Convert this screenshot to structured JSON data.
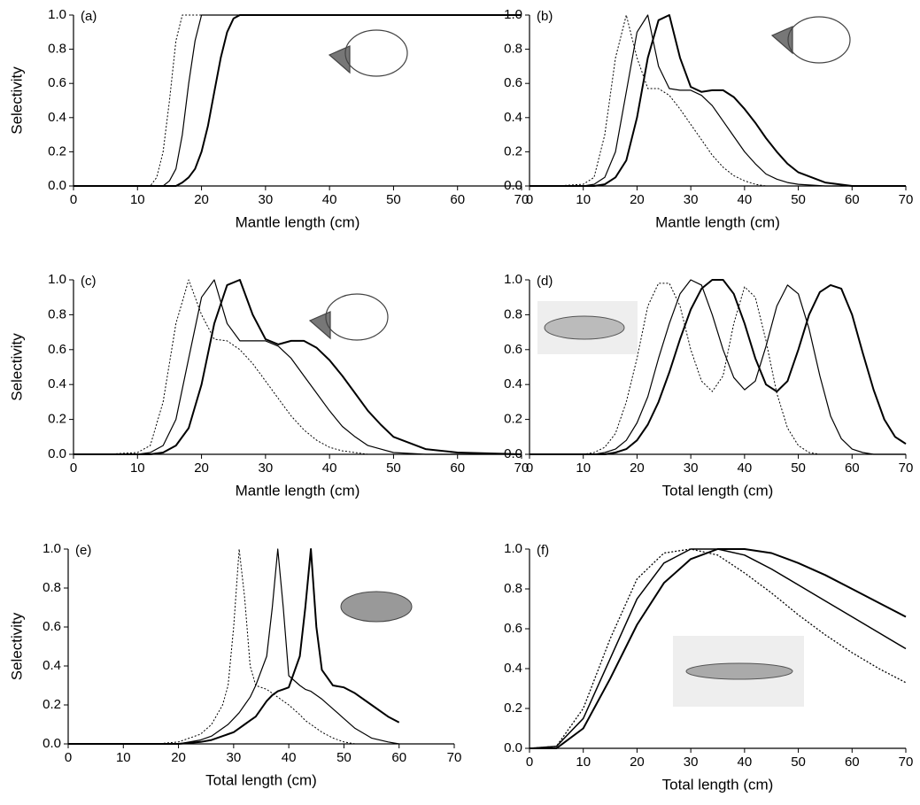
{
  "chart_data": [
    {
      "type": "line",
      "title": "(a)",
      "x_label": "Mantle length (cm)",
      "y_label": "Selectivity",
      "x": [
        0,
        10,
        12,
        13,
        14,
        15,
        16,
        17,
        18,
        19,
        20,
        21,
        22,
        23,
        24,
        25,
        26,
        28,
        30,
        40,
        50,
        60,
        70
      ],
      "series": [
        {
          "style": "dotted",
          "width": 1,
          "color": "#000000",
          "values": [
            0,
            0,
            0,
            0.05,
            0.2,
            0.5,
            0.85,
            1,
            1,
            1,
            1,
            1,
            1,
            1,
            1,
            1,
            1,
            1,
            1,
            1,
            1,
            1,
            1
          ]
        },
        {
          "style": "solid",
          "width": 1.2,
          "color": "#000000",
          "values": [
            0,
            0,
            0,
            0,
            0,
            0.03,
            0.1,
            0.3,
            0.6,
            0.85,
            1,
            1,
            1,
            1,
            1,
            1,
            1,
            1,
            1,
            1,
            1,
            1,
            1
          ]
        },
        {
          "style": "solid",
          "width": 2,
          "color": "#000000",
          "values": [
            0,
            0,
            0,
            0,
            0,
            0,
            0,
            0.02,
            0.05,
            0.1,
            0.2,
            0.35,
            0.55,
            0.75,
            0.9,
            0.98,
            1,
            1,
            1,
            1,
            1,
            1,
            1
          ]
        }
      ],
      "xlim": [
        0,
        70
      ],
      "ylim": [
        0,
        1
      ],
      "xticks": [
        0,
        10,
        20,
        30,
        40,
        50,
        60,
        70
      ],
      "yticks": [
        {
          "value": 0,
          "label": "0.0"
        },
        0.2,
        0.4,
        0.6,
        0.8,
        {
          "value": 1,
          "label": "1.0"
        }
      ]
    },
    {
      "type": "line",
      "title": "(b)",
      "x_label": "Mantle length (cm)",
      "x": [
        0,
        5,
        10,
        12,
        14,
        16,
        18,
        20,
        22,
        24,
        26,
        28,
        30,
        32,
        34,
        36,
        38,
        40,
        42,
        44,
        46,
        48,
        50,
        55,
        60,
        70
      ],
      "series": [
        {
          "style": "dotted",
          "width": 1,
          "color": "#000000",
          "values": [
            0,
            0,
            0.01,
            0.05,
            0.3,
            0.75,
            1,
            0.75,
            0.57,
            0.57,
            0.53,
            0.45,
            0.36,
            0.27,
            0.18,
            0.11,
            0.06,
            0.03,
            0.01,
            0,
            0,
            0,
            0,
            0,
            0,
            0
          ]
        },
        {
          "style": "solid",
          "width": 1.2,
          "color": "#000000",
          "values": [
            0,
            0,
            0,
            0.01,
            0.05,
            0.2,
            0.55,
            0.9,
            1,
            0.7,
            0.57,
            0.56,
            0.56,
            0.53,
            0.47,
            0.38,
            0.29,
            0.2,
            0.13,
            0.07,
            0.04,
            0.02,
            0.01,
            0,
            0,
            0
          ]
        },
        {
          "style": "solid",
          "width": 2,
          "color": "#000000",
          "values": [
            0,
            0,
            0,
            0,
            0.01,
            0.05,
            0.15,
            0.4,
            0.75,
            0.97,
            1,
            0.75,
            0.58,
            0.55,
            0.56,
            0.56,
            0.52,
            0.45,
            0.37,
            0.28,
            0.2,
            0.13,
            0.08,
            0.02,
            0,
            0
          ]
        }
      ],
      "xlim": [
        0,
        70
      ],
      "ylim": [
        0,
        1
      ],
      "xticks": [
        0,
        10,
        20,
        30,
        40,
        50,
        60,
        70
      ],
      "yticks": [
        {
          "value": 0,
          "label": "0.0"
        },
        0.2,
        0.4,
        0.6,
        0.8,
        {
          "value": 1,
          "label": "1.0"
        }
      ]
    },
    {
      "type": "line",
      "title": "(c)",
      "x_label": "Mantle length (cm)",
      "y_label": "Selectivity",
      "x": [
        0,
        5,
        10,
        12,
        14,
        16,
        18,
        20,
        22,
        24,
        26,
        28,
        30,
        32,
        34,
        36,
        38,
        40,
        42,
        44,
        46,
        48,
        50,
        55,
        60,
        70
      ],
      "series": [
        {
          "style": "dotted",
          "width": 1,
          "color": "#000000",
          "values": [
            0,
            0,
            0.01,
            0.05,
            0.3,
            0.75,
            1,
            0.8,
            0.66,
            0.65,
            0.6,
            0.52,
            0.42,
            0.32,
            0.22,
            0.14,
            0.08,
            0.04,
            0.02,
            0.01,
            0,
            0,
            0,
            0,
            0,
            0
          ]
        },
        {
          "style": "solid",
          "width": 1.2,
          "color": "#000000",
          "values": [
            0,
            0,
            0,
            0.01,
            0.05,
            0.2,
            0.55,
            0.9,
            1,
            0.75,
            0.65,
            0.65,
            0.65,
            0.62,
            0.55,
            0.45,
            0.35,
            0.25,
            0.16,
            0.1,
            0.05,
            0.03,
            0.01,
            0,
            0,
            0
          ]
        },
        {
          "style": "solid",
          "width": 2,
          "color": "#000000",
          "values": [
            0,
            0,
            0,
            0,
            0.01,
            0.05,
            0.15,
            0.4,
            0.75,
            0.97,
            1,
            0.8,
            0.66,
            0.63,
            0.65,
            0.65,
            0.61,
            0.54,
            0.45,
            0.35,
            0.25,
            0.17,
            0.1,
            0.03,
            0.01,
            0
          ]
        }
      ],
      "xlim": [
        0,
        70
      ],
      "ylim": [
        0,
        1
      ],
      "xticks": [
        0,
        10,
        20,
        30,
        40,
        50,
        60,
        70
      ],
      "yticks": [
        {
          "value": 0,
          "label": "0.0"
        },
        0.2,
        0.4,
        0.6,
        0.8,
        {
          "value": 1,
          "label": "1.0"
        }
      ]
    },
    {
      "type": "line",
      "title": "(d)",
      "x_label": "Total length (cm)",
      "x": [
        0,
        10,
        12,
        14,
        16,
        18,
        20,
        22,
        24,
        26,
        28,
        30,
        32,
        34,
        36,
        38,
        40,
        42,
        44,
        46,
        48,
        50,
        52,
        54,
        56,
        58,
        60,
        62,
        64,
        66,
        68,
        70
      ],
      "series": [
        {
          "style": "dotted",
          "width": 1,
          "color": "#000000",
          "values": [
            0,
            0,
            0.01,
            0.04,
            0.12,
            0.3,
            0.55,
            0.85,
            0.98,
            0.98,
            0.85,
            0.6,
            0.42,
            0.36,
            0.45,
            0.75,
            0.96,
            0.9,
            0.65,
            0.35,
            0.15,
            0.05,
            0.01,
            0,
            0,
            0,
            0,
            0,
            0,
            0,
            0,
            0
          ]
        },
        {
          "style": "solid",
          "width": 1.2,
          "color": "#000000",
          "values": [
            0,
            0,
            0,
            0.01,
            0.03,
            0.08,
            0.18,
            0.33,
            0.55,
            0.75,
            0.92,
            1,
            0.97,
            0.8,
            0.6,
            0.44,
            0.37,
            0.42,
            0.62,
            0.85,
            0.97,
            0.92,
            0.72,
            0.45,
            0.22,
            0.09,
            0.03,
            0.01,
            0,
            0,
            0,
            0
          ]
        },
        {
          "style": "solid",
          "width": 2,
          "color": "#000000",
          "values": [
            0,
            0,
            0,
            0,
            0.01,
            0.03,
            0.08,
            0.17,
            0.3,
            0.47,
            0.66,
            0.83,
            0.95,
            1,
            1,
            0.92,
            0.75,
            0.55,
            0.4,
            0.36,
            0.42,
            0.6,
            0.8,
            0.93,
            0.97,
            0.95,
            0.8,
            0.58,
            0.37,
            0.2,
            0.1,
            0.06
          ]
        }
      ],
      "xlim": [
        0,
        70
      ],
      "ylim": [
        0,
        1
      ],
      "xticks": [
        0,
        10,
        20,
        30,
        40,
        50,
        60,
        70
      ],
      "yticks": [
        {
          "value": 0,
          "label": "0.0"
        },
        0.2,
        0.4,
        0.6,
        0.8,
        {
          "value": 1,
          "label": "1.0"
        }
      ]
    },
    {
      "type": "line",
      "title": "(e)",
      "x_label": "Total length (cm)",
      "y_label": "Selectivity",
      "x": [
        0,
        16,
        20,
        24,
        26,
        28,
        29,
        30,
        31,
        32,
        33,
        34,
        36,
        37,
        38,
        39,
        40,
        42,
        43,
        44,
        45,
        46,
        48,
        50,
        52,
        55,
        58,
        60
      ],
      "series": [
        {
          "style": "dotted",
          "width": 1,
          "color": "#000000",
          "values": [
            0,
            0,
            0.01,
            0.05,
            0.1,
            0.2,
            0.3,
            0.6,
            1,
            0.75,
            0.4,
            0.3,
            0.28,
            0.26,
            0.24,
            0.22,
            0.2,
            0.15,
            0.12,
            0.1,
            0.08,
            0.06,
            0.03,
            0.01,
            0,
            0,
            0,
            0
          ]
        },
        {
          "style": "solid",
          "width": 1.2,
          "color": "#000000",
          "values": [
            0,
            0,
            0,
            0.02,
            0.04,
            0.08,
            0.1,
            0.13,
            0.16,
            0.2,
            0.24,
            0.3,
            0.45,
            0.7,
            1,
            0.7,
            0.35,
            0.3,
            0.28,
            0.27,
            0.25,
            0.23,
            0.18,
            0.13,
            0.08,
            0.03,
            0.01,
            0
          ]
        },
        {
          "style": "solid",
          "width": 2,
          "color": "#000000",
          "values": [
            0,
            0,
            0,
            0.01,
            0.02,
            0.04,
            0.05,
            0.06,
            0.08,
            0.1,
            0.12,
            0.14,
            0.22,
            0.25,
            0.27,
            0.28,
            0.29,
            0.45,
            0.7,
            1,
            0.6,
            0.38,
            0.3,
            0.29,
            0.26,
            0.2,
            0.14,
            0.11
          ]
        }
      ],
      "xlim": [
        0,
        70
      ],
      "ylim": [
        0,
        1
      ],
      "xticks": [
        0,
        10,
        20,
        30,
        40,
        50,
        60,
        70
      ],
      "yticks": [
        {
          "value": 0,
          "label": "0.0"
        },
        0.2,
        0.4,
        0.6,
        0.8,
        {
          "value": 1,
          "label": "1.0"
        }
      ]
    },
    {
      "type": "line",
      "title": "(f)",
      "x_label": "Total length (cm)",
      "x": [
        0,
        5,
        10,
        15,
        20,
        25,
        30,
        35,
        40,
        45,
        50,
        55,
        60,
        65,
        70
      ],
      "series": [
        {
          "style": "dotted",
          "width": 1.3,
          "color": "#000000",
          "values": [
            0,
            0.01,
            0.2,
            0.55,
            0.85,
            0.98,
            1,
            0.97,
            0.88,
            0.78,
            0.67,
            0.57,
            0.48,
            0.4,
            0.33
          ]
        },
        {
          "style": "solid",
          "width": 1.5,
          "color": "#000000",
          "values": [
            0,
            0.01,
            0.15,
            0.45,
            0.75,
            0.93,
            1,
            1,
            0.97,
            0.9,
            0.82,
            0.74,
            0.66,
            0.58,
            0.5
          ]
        },
        {
          "style": "solid",
          "width": 2,
          "color": "#000000",
          "values": [
            0,
            0,
            0.1,
            0.35,
            0.62,
            0.83,
            0.95,
            1,
            1,
            0.98,
            0.93,
            0.87,
            0.8,
            0.73,
            0.66
          ]
        }
      ],
      "xlim": [
        0,
        70
      ],
      "ylim": [
        0,
        1
      ],
      "xticks": [
        0,
        10,
        20,
        30,
        40,
        50,
        60,
        70
      ],
      "yticks": [
        {
          "value": 0,
          "label": "0.0"
        },
        0.2,
        0.4,
        0.6,
        0.8,
        {
          "value": 1,
          "label": "1.0"
        }
      ]
    }
  ]
}
